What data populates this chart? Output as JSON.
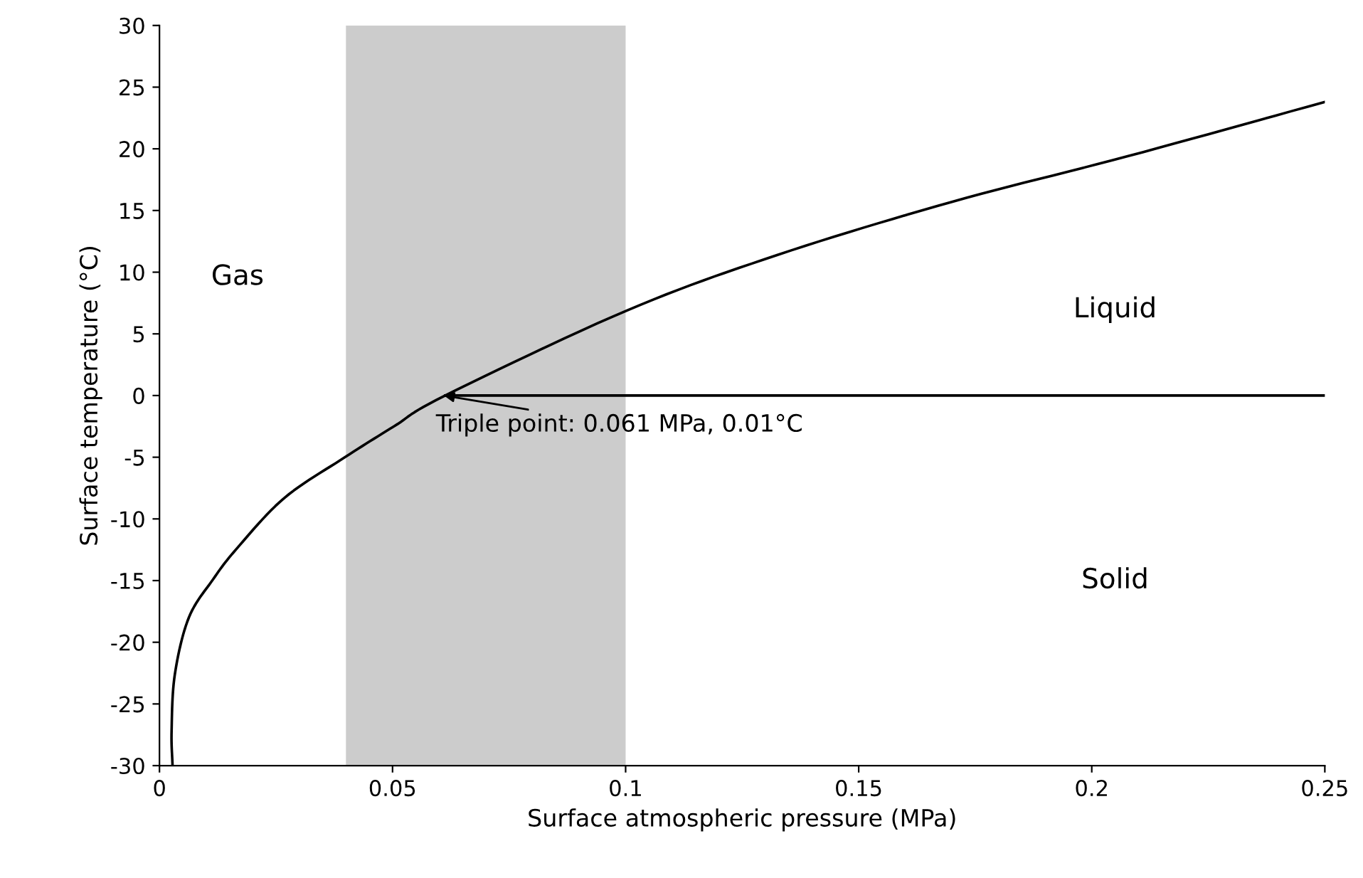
{
  "chart_data": {
    "type": "line",
    "xlabel": "Surface atmospheric pressure (MPa)",
    "ylabel": "Surface temperature (°C)",
    "series": [
      {
        "color": "#000000",
        "x": [
          0.0028,
          0.0026,
          0.0033,
          0.0063,
          0.0115,
          0.0166,
          0.0268,
          0.0398,
          0.0503,
          0.0613,
          0.1003,
          0.1326,
          0.17,
          0.2077,
          0.25
        ],
        "values": [
          -30,
          -27.2,
          -22.6,
          -18,
          -14.9,
          -12.4,
          -8.3,
          -5,
          -2.5,
          0,
          6.9,
          11.4,
          15.7,
          19.4,
          23.8
        ]
      },
      {
        "color": "#000000",
        "x": [
          0.0613,
          0.25
        ],
        "values": [
          0,
          0
        ]
      }
    ],
    "bands": [
      {
        "axis": "x",
        "from": 0.04,
        "to": 0.1,
        "color": "#cccccc"
      }
    ],
    "annotations": [
      "Gas",
      "Liquid",
      "Solid",
      {
        "text": "Triple point: 0.061 MPa, 0.01°C",
        "x": 0.061,
        "y": 0.01
      }
    ],
    "xlim": [
      0,
      0.25
    ],
    "xticks": [
      0,
      0.05,
      0.1,
      0.15,
      0.2,
      0.25
    ],
    "ylim": [
      -30,
      30
    ],
    "yticks": [
      -30,
      -25,
      -20,
      -15,
      -10,
      -5,
      0,
      5,
      10,
      15,
      20,
      25,
      30
    ],
    "grid": false,
    "legend": false,
    "marker": "none",
    "line_style": "solid"
  }
}
